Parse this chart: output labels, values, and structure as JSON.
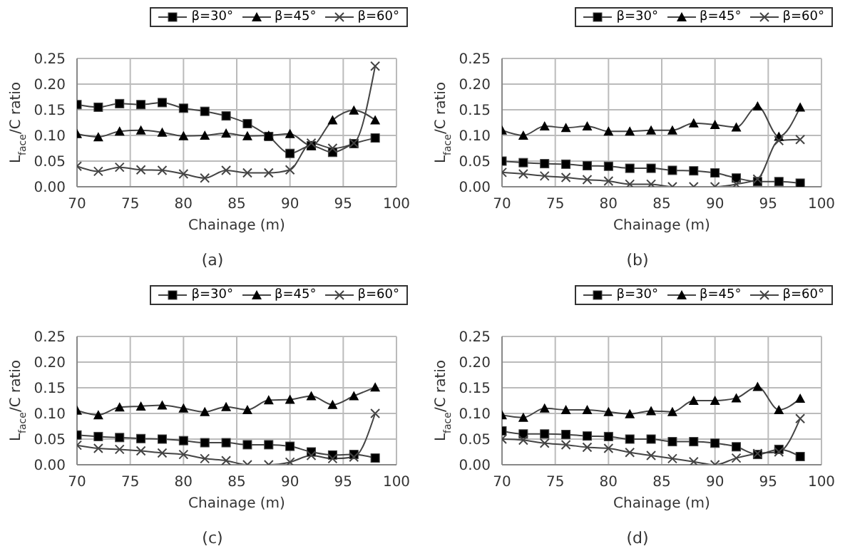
{
  "chart_data": [
    {
      "type": "line",
      "xlabel": "Chainage (m)",
      "ylabel": "L$_{face}$/C ratio",
      "annotations": [
        "(a)"
      ],
      "x": [
        70,
        72,
        74,
        76,
        78,
        80,
        82,
        84,
        86,
        88,
        90,
        92,
        94,
        96,
        98
      ],
      "xlim": [
        70,
        100
      ],
      "xticks": [
        70,
        75,
        80,
        85,
        90,
        95,
        100
      ],
      "ylim": [
        0,
        0.25
      ],
      "yticks": [
        {
          "value": 0,
          "label": "0.00"
        },
        {
          "value": 0.05,
          "label": "0.05"
        },
        {
          "value": 0.1,
          "label": "0.10"
        },
        {
          "value": 0.15,
          "label": "0.15"
        },
        {
          "value": 0.2,
          "label": "0.20"
        },
        {
          "value": 0.25,
          "label": "0.25"
        }
      ],
      "grid": true,
      "legend": "top right",
      "series": [
        {
          "name": "β=30°",
          "color": "#444444",
          "marker": "square",
          "values": [
            0.16,
            0.155,
            0.162,
            0.16,
            0.164,
            0.153,
            0.147,
            0.138,
            0.123,
            0.098,
            0.065,
            0.08,
            0.067,
            0.084,
            0.095
          ]
        },
        {
          "name": "β=45°",
          "color": "#444444",
          "marker": "triangle",
          "values": [
            0.103,
            0.097,
            0.108,
            0.11,
            0.106,
            0.099,
            0.1,
            0.104,
            0.099,
            0.1,
            0.103,
            0.08,
            0.13,
            0.149,
            0.13
          ]
        },
        {
          "name": "β=60°",
          "color": "#444444",
          "marker": "cross",
          "values": [
            0.04,
            0.03,
            0.038,
            0.033,
            0.032,
            0.025,
            0.017,
            0.032,
            0.027,
            0.027,
            0.033,
            0.085,
            0.075,
            0.085,
            0.235
          ]
        }
      ]
    },
    {
      "type": "line",
      "xlabel": "Chainage (m)",
      "ylabel": "L$_{face}$/C ratio",
      "annotations": [
        "(b)"
      ],
      "x": [
        70,
        72,
        74,
        76,
        78,
        80,
        82,
        84,
        86,
        88,
        90,
        92,
        94,
        96,
        98
      ],
      "xlim": [
        70,
        100
      ],
      "xticks": [
        70,
        75,
        80,
        85,
        90,
        95,
        100
      ],
      "ylim": [
        0,
        0.25
      ],
      "yticks": [
        {
          "value": 0,
          "label": "0.00"
        },
        {
          "value": 0.05,
          "label": "0.05"
        },
        {
          "value": 0.1,
          "label": "0.10"
        },
        {
          "value": 0.15,
          "label": "0.15"
        },
        {
          "value": 0.2,
          "label": "0.20"
        },
        {
          "value": 0.25,
          "label": "0.25"
        }
      ],
      "grid": true,
      "legend": "top right",
      "series": [
        {
          "name": "β=30°",
          "color": "#444444",
          "marker": "square",
          "values": [
            0.05,
            0.047,
            0.045,
            0.044,
            0.041,
            0.04,
            0.036,
            0.036,
            0.032,
            0.031,
            0.027,
            0.017,
            0.01,
            0.01,
            0.007
          ]
        },
        {
          "name": "β=45°",
          "color": "#444444",
          "marker": "triangle",
          "values": [
            0.11,
            0.1,
            0.118,
            0.115,
            0.118,
            0.108,
            0.108,
            0.11,
            0.11,
            0.124,
            0.121,
            0.116,
            0.157,
            0.098,
            0.155
          ]
        },
        {
          "name": "β=60°",
          "color": "#444444",
          "marker": "cross",
          "values": [
            0.028,
            0.025,
            0.021,
            0.018,
            0.014,
            0.011,
            0.005,
            0.005,
            0,
            0,
            0,
            0.005,
            0.015,
            0.09,
            0.092
          ]
        }
      ]
    },
    {
      "type": "line",
      "xlabel": "Chainage (m)",
      "ylabel": "L$_{face}$/C ratio",
      "annotations": [
        "(c)"
      ],
      "x": [
        70,
        72,
        74,
        76,
        78,
        80,
        82,
        84,
        86,
        88,
        90,
        92,
        94,
        96,
        98
      ],
      "xlim": [
        70,
        100
      ],
      "xticks": [
        70,
        75,
        80,
        85,
        90,
        95,
        100
      ],
      "ylim": [
        0,
        0.25
      ],
      "yticks": [
        {
          "value": 0,
          "label": "0.00"
        },
        {
          "value": 0.05,
          "label": "0.05"
        },
        {
          "value": 0.1,
          "label": "0.10"
        },
        {
          "value": 0.15,
          "label": "0.15"
        },
        {
          "value": 0.2,
          "label": "0.20"
        },
        {
          "value": 0.25,
          "label": "0.25"
        }
      ],
      "grid": true,
      "legend": "top right",
      "series": [
        {
          "name": "β=30°",
          "color": "#444444",
          "marker": "square",
          "values": [
            0.058,
            0.055,
            0.053,
            0.051,
            0.05,
            0.047,
            0.043,
            0.043,
            0.039,
            0.039,
            0.036,
            0.025,
            0.019,
            0.02,
            0.013
          ]
        },
        {
          "name": "β=45°",
          "color": "#444444",
          "marker": "triangle",
          "values": [
            0.106,
            0.097,
            0.112,
            0.114,
            0.116,
            0.11,
            0.103,
            0.113,
            0.107,
            0.126,
            0.127,
            0.134,
            0.117,
            0.134,
            0.151
          ]
        },
        {
          "name": "β=60°",
          "color": "#444444",
          "marker": "cross",
          "values": [
            0.038,
            0.032,
            0.03,
            0.027,
            0.023,
            0.02,
            0.012,
            0.008,
            0,
            0,
            0.005,
            0.018,
            0.012,
            0.015,
            0.1
          ]
        }
      ]
    },
    {
      "type": "line",
      "xlabel": "Chainage (m)",
      "ylabel": "L$_{face}$/C ratio",
      "annotations": [
        "(d)"
      ],
      "x": [
        70,
        72,
        74,
        76,
        78,
        80,
        82,
        84,
        86,
        88,
        90,
        92,
        94,
        96,
        98
      ],
      "xlim": [
        70,
        100
      ],
      "xticks": [
        70,
        75,
        80,
        85,
        90,
        95,
        100
      ],
      "ylim": [
        0,
        0.25
      ],
      "yticks": [
        {
          "value": 0,
          "label": "0.00"
        },
        {
          "value": 0.05,
          "label": "0.05"
        },
        {
          "value": 0.1,
          "label": "0.10"
        },
        {
          "value": 0.15,
          "label": "0.15"
        },
        {
          "value": 0.2,
          "label": "0.20"
        },
        {
          "value": 0.25,
          "label": "0.25"
        }
      ],
      "grid": true,
      "legend": "top right",
      "series": [
        {
          "name": "β=30°",
          "color": "#444444",
          "marker": "square",
          "values": [
            0.066,
            0.06,
            0.06,
            0.059,
            0.056,
            0.055,
            0.05,
            0.05,
            0.045,
            0.045,
            0.042,
            0.035,
            0.02,
            0.03,
            0.016
          ]
        },
        {
          "name": "β=45°",
          "color": "#444444",
          "marker": "triangle",
          "values": [
            0.097,
            0.092,
            0.11,
            0.107,
            0.107,
            0.103,
            0.099,
            0.105,
            0.103,
            0.125,
            0.125,
            0.13,
            0.152,
            0.107,
            0.129
          ]
        },
        {
          "name": "β=60°",
          "color": "#444444",
          "marker": "cross",
          "values": [
            0.05,
            0.048,
            0.042,
            0.039,
            0.034,
            0.032,
            0.024,
            0.018,
            0.012,
            0.006,
            0,
            0.013,
            0.022,
            0.025,
            0.09
          ]
        }
      ]
    }
  ]
}
